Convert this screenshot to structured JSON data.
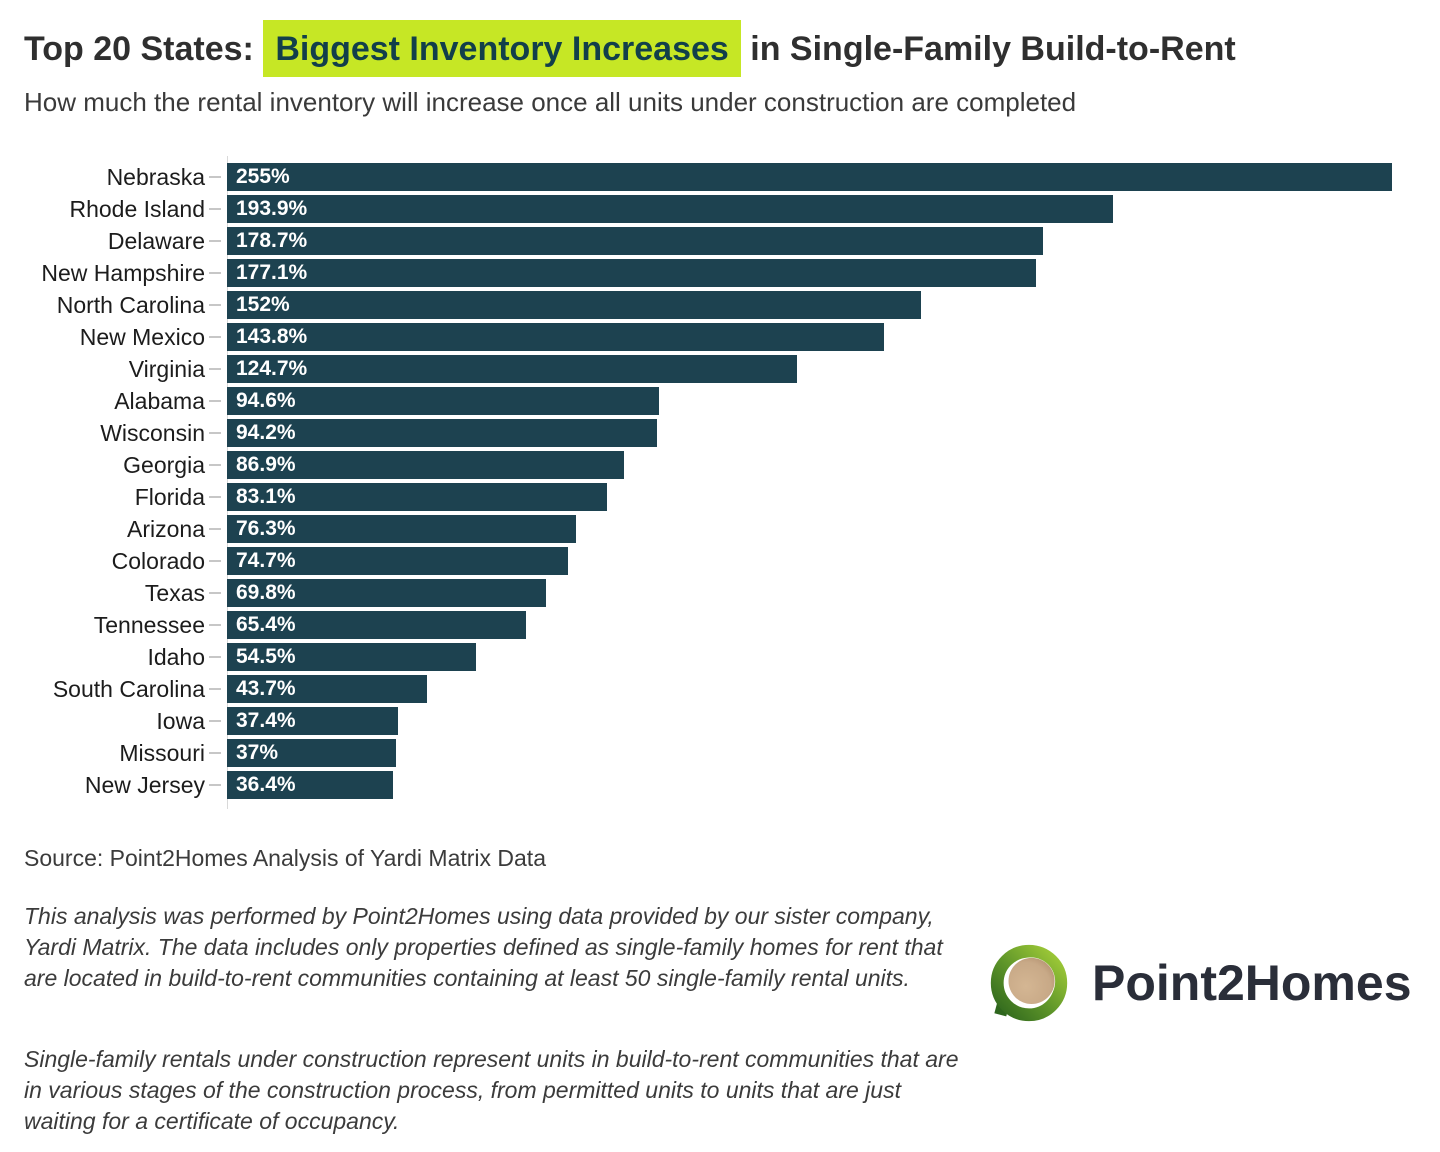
{
  "header": {
    "title_prefix": "Top 20 States: ",
    "title_highlight": "Biggest Inventory Increases",
    "title_suffix": " in Single-Family Build-to-Rent",
    "subtitle": "How much the rental inventory will increase once all units under construction are completed"
  },
  "chart_data": {
    "type": "bar",
    "orientation": "horizontal",
    "title": "Top 20 States: Biggest Inventory Increases in Single-Family Build-to-Rent",
    "subtitle": "How much the rental inventory will increase once all units under construction are completed",
    "categories": [
      "Nebraska",
      "Rhode Island",
      "Delaware",
      "New Hampshire",
      "North Carolina",
      "New Mexico",
      "Virginia",
      "Alabama",
      "Wisconsin",
      "Georgia",
      "Florida",
      "Arizona",
      "Colorado",
      "Texas",
      "Tennessee",
      "Idaho",
      "South Carolina",
      "Iowa",
      "Missouri",
      "New Jersey"
    ],
    "values": [
      255,
      193.9,
      178.7,
      177.1,
      152,
      143.8,
      124.7,
      94.6,
      94.2,
      86.9,
      83.1,
      76.3,
      74.7,
      69.8,
      65.4,
      54.5,
      43.7,
      37.4,
      37,
      36.4
    ],
    "value_labels": [
      "255%",
      "193.9%",
      "178.7%",
      "177.1%",
      "152%",
      "143.8%",
      "124.7%",
      "94.6%",
      "94.2%",
      "86.9%",
      "83.1%",
      "76.3%",
      "74.7%",
      "69.8%",
      "65.4%",
      "54.5%",
      "43.7%",
      "37.4%",
      "37%",
      "36.4%"
    ],
    "xlabel": "",
    "ylabel": "",
    "xlim": [
      0,
      255
    ],
    "grid": false,
    "legend": false,
    "bar_color": "#1d4250",
    "value_label_color": "#ffffff"
  },
  "footer": {
    "source": "Source: Point2Homes Analysis of Yardi Matrix Data",
    "note1": "This analysis was performed by Point2Homes using data provided by our sister company, Yardi Matrix. The data includes only properties defined as single-family homes for rent that are located in build-to-rent communities containing at least 50 single-family rental units.",
    "note2": "Single-family rentals under construction represent units in build-to-rent communities that are in various stages of the construction process, from permitted units to units that are just waiting for a certificate of occupancy.",
    "logo_text": "Point2Homes"
  },
  "colors": {
    "highlight_bg": "#c6e725",
    "highlight_text": "#123f4a",
    "bar": "#1d4250",
    "title_text": "#2f2f2f",
    "logo_ring_light": "#a5cf39",
    "logo_ring_dark": "#2e661d",
    "logo_dot": "#c8a987"
  }
}
